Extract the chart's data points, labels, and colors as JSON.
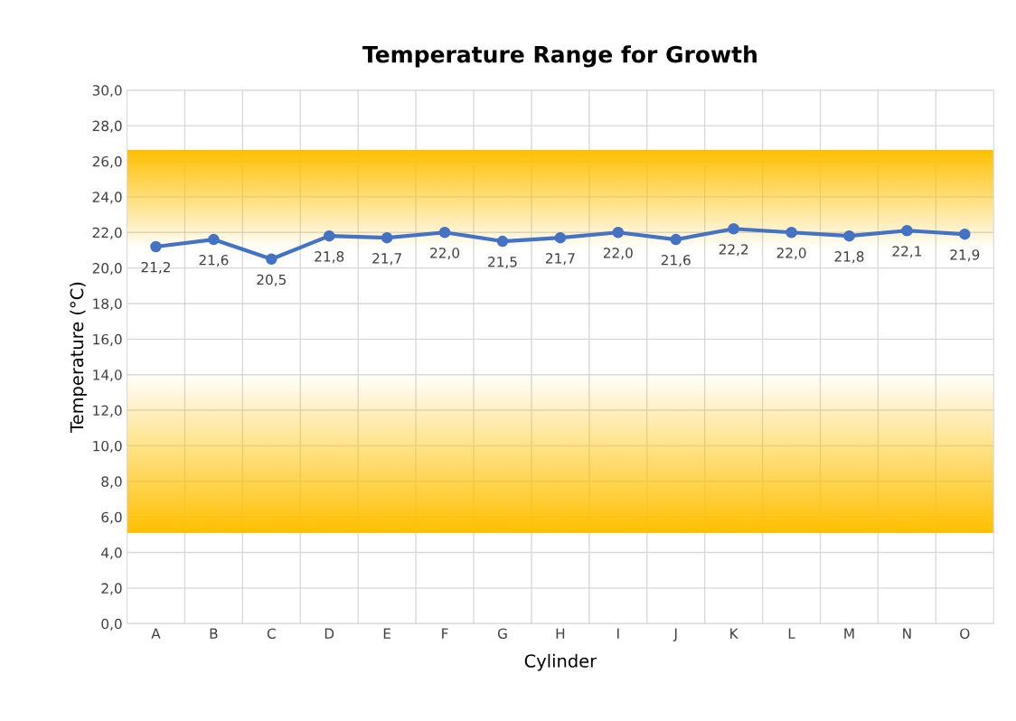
{
  "chart_data": {
    "type": "line",
    "title": "Temperature Range for Growth",
    "xlabel": "Cylinder",
    "ylabel": "Temperature (°C)",
    "categories": [
      "A",
      "B",
      "C",
      "D",
      "E",
      "F",
      "G",
      "H",
      "I",
      "J",
      "K",
      "L",
      "M",
      "N",
      "O"
    ],
    "series": [
      {
        "color": "#4472c4",
        "values": [
          21.2,
          21.6,
          20.5,
          21.8,
          21.7,
          22.0,
          21.5,
          21.7,
          22.0,
          21.6,
          22.2,
          22.0,
          21.8,
          22.1,
          21.9
        ],
        "value_labels": [
          "21,2",
          "21,6",
          "20,5",
          "21,8",
          "21,7",
          "22,0",
          "21,5",
          "21,7",
          "22,0",
          "21,6",
          "22,2",
          "22,0",
          "21,8",
          "22,1",
          "21,9"
        ]
      }
    ],
    "ylim": [
      0,
      30
    ],
    "yticks": [
      {
        "value": 0,
        "label": "0,0"
      },
      {
        "value": 2,
        "label": "2,0"
      },
      {
        "value": 4,
        "label": "4,0"
      },
      {
        "value": 6,
        "label": "6,0"
      },
      {
        "value": 8,
        "label": "8,0"
      },
      {
        "value": 10,
        "label": "10,0"
      },
      {
        "value": 12,
        "label": "12,0"
      },
      {
        "value": 14,
        "label": "14,0"
      },
      {
        "value": 16,
        "label": "16,0"
      },
      {
        "value": 18,
        "label": "18,0"
      },
      {
        "value": 20,
        "label": "20,0"
      },
      {
        "value": 22,
        "label": "22,0"
      },
      {
        "value": 24,
        "label": "24,0"
      },
      {
        "value": 26,
        "label": "26,0"
      },
      {
        "value": 28,
        "label": "28,0"
      },
      {
        "value": 30,
        "label": "30,0"
      }
    ],
    "bands": [
      {
        "axis": "y",
        "from": 5.1,
        "to": 26.6,
        "color": "#ffc000"
      }
    ],
    "grid": true,
    "marker": "circle",
    "line_style": "solid"
  }
}
